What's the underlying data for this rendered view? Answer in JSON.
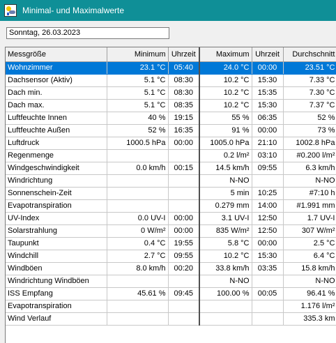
{
  "window": {
    "title": "Minimal- und Maximalwerte",
    "icon": "weather-station-icon"
  },
  "date_field": {
    "value": "Sonntag, 26.03.2023"
  },
  "table": {
    "headers": [
      "Messgröße",
      "Minimum",
      "Uhrzeit",
      "Maximum",
      "Uhrzeit",
      "Durchschnitt"
    ],
    "selected_row": 0,
    "rows": [
      [
        "Wohnzimmer",
        "23.1 °C",
        "05:40",
        "24.0 °C",
        "00:00",
        "23.51 °C"
      ],
      [
        "Dachsensor (Aktiv)",
        "5.1 °C",
        "08:30",
        "10.2 °C",
        "15:30",
        "7.33 °C"
      ],
      [
        "Dach min.",
        "5.1 °C",
        "08:30",
        "10.2 °C",
        "15:35",
        "7.30 °C"
      ],
      [
        "Dach max.",
        "5.1 °C",
        "08:35",
        "10.2 °C",
        "15:30",
        "7.37 °C"
      ],
      [
        "Luftfeuchte Innen",
        "40 %",
        "19:15",
        "55 %",
        "06:35",
        "52 %"
      ],
      [
        "Luftfeuchte Außen",
        "52 %",
        "16:35",
        "91 %",
        "00:00",
        "73 %"
      ],
      [
        "Luftdruck",
        "1000.5 hPa",
        "00:00",
        "1005.0 hPa",
        "21:10",
        "1002.8 hPa"
      ],
      [
        "Regenmenge",
        "",
        "",
        "0.2 l/m²",
        "03:10",
        "#0.200 l/m²"
      ],
      [
        "Windgeschwindigkeit",
        "0.0 km/h",
        "00:15",
        "14.5 km/h",
        "09:55",
        "6.3 km/h"
      ],
      [
        "Windrichtung",
        "",
        "",
        "N-NO",
        "",
        "N-NO"
      ],
      [
        "Sonnenschein-Zeit",
        "",
        "",
        "5 min",
        "10:25",
        "#7:10 h"
      ],
      [
        "Evapotranspiration",
        "",
        "",
        "0.279 mm",
        "14:00",
        "#1.991 mm"
      ],
      [
        "UV-Index",
        "0.0 UV-I",
        "00:00",
        "3.1 UV-I",
        "12:50",
        "1.7 UV-I"
      ],
      [
        "Solarstrahlung",
        "0 W/m²",
        "00:00",
        "835 W/m²",
        "12:50",
        "307 W/m²"
      ],
      [
        "Taupunkt",
        "0.4 °C",
        "19:55",
        "5.8 °C",
        "00:00",
        "2.5 °C"
      ],
      [
        "Windchill",
        "2.7 °C",
        "09:55",
        "10.2 °C",
        "15:30",
        "6.4 °C"
      ],
      [
        "Windböen",
        "8.0 km/h",
        "00:20",
        "33.8 km/h",
        "03:35",
        "15.8 km/h"
      ],
      [
        "Windrichtung Windböen",
        "",
        "",
        "N-NO",
        "",
        "N-NO"
      ],
      [
        "ISS Empfang",
        "45.61 %",
        "09:45",
        "100.00 %",
        "00:05",
        "96.41 %"
      ],
      [
        "Evapotranspiration",
        "",
        "",
        "",
        "",
        "1.176 l/m²"
      ],
      [
        "Wind Verlauf",
        "",
        "",
        "",
        "",
        "335.3 km"
      ]
    ]
  }
}
